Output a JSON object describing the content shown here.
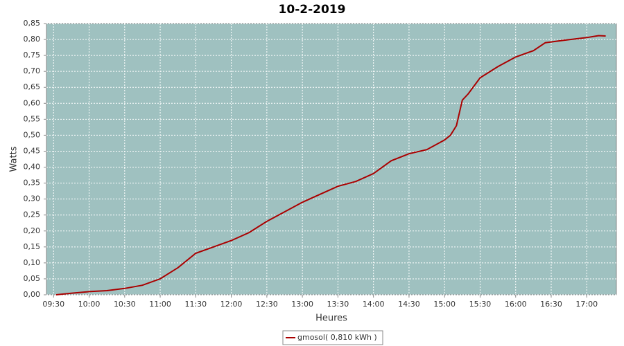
{
  "chart_data": {
    "type": "line",
    "title": "10-2-2019",
    "x_label": "Heures",
    "y_label": "Watts",
    "x": [
      "09:32",
      "09:45",
      "10:00",
      "10:15",
      "10:30",
      "10:45",
      "11:00",
      "11:15",
      "11:30",
      "11:45",
      "12:00",
      "12:15",
      "12:30",
      "12:45",
      "13:00",
      "13:15",
      "13:30",
      "13:45",
      "14:00",
      "14:15",
      "14:30",
      "14:45",
      "15:00",
      "15:05",
      "15:10",
      "15:15",
      "15:20",
      "15:30",
      "15:45",
      "16:00",
      "16:15",
      "16:25",
      "16:40",
      "17:00",
      "17:10",
      "17:16"
    ],
    "series": [
      {
        "name": "gmosol( 0,810 kWh )",
        "color": "#aa0000",
        "values": [
          0.0,
          0.005,
          0.01,
          0.013,
          0.02,
          0.03,
          0.05,
          0.085,
          0.13,
          0.15,
          0.17,
          0.195,
          0.23,
          0.26,
          0.29,
          0.315,
          0.34,
          0.355,
          0.38,
          0.42,
          0.442,
          0.455,
          0.485,
          0.5,
          0.53,
          0.61,
          0.63,
          0.68,
          0.715,
          0.745,
          0.765,
          0.79,
          0.797,
          0.806,
          0.812,
          0.811
        ]
      }
    ],
    "xlim": [
      "09:24",
      "17:25"
    ],
    "xticks": [
      "09:30",
      "10:00",
      "10:30",
      "11:00",
      "11:30",
      "12:00",
      "12:30",
      "13:00",
      "13:30",
      "14:00",
      "14:30",
      "15:00",
      "15:30",
      "16:00",
      "16:30",
      "17:00"
    ],
    "ylim": [
      0,
      0.85
    ],
    "yticks": [
      {
        "value": 0,
        "label": "0,00"
      },
      {
        "value": 0.05,
        "label": "0,05"
      },
      {
        "value": 0.1,
        "label": "0,10"
      },
      {
        "value": 0.15,
        "label": "0,15"
      },
      {
        "value": 0.2,
        "label": "0,20"
      },
      {
        "value": 0.25,
        "label": "0,25"
      },
      {
        "value": 0.3,
        "label": "0,30"
      },
      {
        "value": 0.35,
        "label": "0,35"
      },
      {
        "value": 0.4,
        "label": "0,40"
      },
      {
        "value": 0.45,
        "label": "0,45"
      },
      {
        "value": 0.5,
        "label": "0,50"
      },
      {
        "value": 0.55,
        "label": "0,55"
      },
      {
        "value": 0.6,
        "label": "0,60"
      },
      {
        "value": 0.65,
        "label": "0,65"
      },
      {
        "value": 0.7,
        "label": "0,70"
      },
      {
        "value": 0.75,
        "label": "0,75"
      },
      {
        "value": 0.8,
        "label": "0,80"
      },
      {
        "value": 0.85,
        "label": "0,85"
      }
    ],
    "grid": true,
    "background": "#9fc1c0",
    "legend": "bottom"
  }
}
